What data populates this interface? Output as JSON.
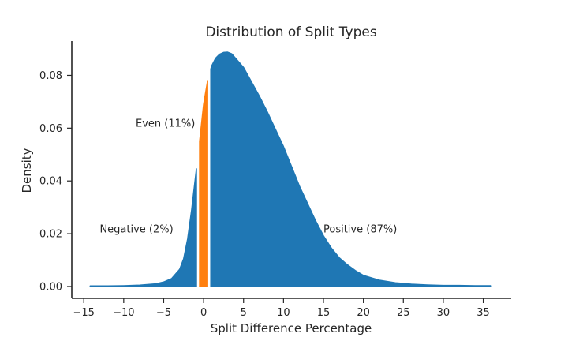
{
  "chart_data": {
    "type": "area",
    "title": "Distribution of Split Types",
    "xlabel": "Split Difference Percentage",
    "ylabel": "Density",
    "xlim": [
      -16.5,
      38.5
    ],
    "ylim": [
      -0.0045,
      0.093
    ],
    "xticks": [
      -15,
      -10,
      -5,
      0,
      5,
      10,
      15,
      20,
      25,
      30,
      35
    ],
    "xtick_labels": [
      "−15",
      "−10",
      "−5",
      "0",
      "5",
      "10",
      "15",
      "20",
      "25",
      "30",
      "35"
    ],
    "yticks": [
      0.0,
      0.02,
      0.04,
      0.06,
      0.08
    ],
    "ytick_labels": [
      "0.00",
      "0.02",
      "0.04",
      "0.06",
      "0.08"
    ],
    "grid": false,
    "colors": {
      "negative": "#1f77b4",
      "even": "#ff7f0e",
      "positive": "#1f77b4"
    },
    "density_curve": {
      "x": [
        -14.2,
        -12,
        -10,
        -8,
        -6,
        -5,
        -4,
        -3,
        -2.5,
        -2,
        -1.5,
        -1,
        -0.5,
        0,
        0.5,
        1,
        1.5,
        2,
        2.5,
        3,
        3.5,
        4,
        5,
        6,
        7,
        8,
        9,
        10,
        11,
        12,
        13,
        14,
        15,
        16,
        17,
        18,
        19,
        20,
        22,
        24,
        26,
        28,
        30,
        32,
        34,
        36
      ],
      "y": [
        0.0002,
        0.0002,
        0.0003,
        0.0005,
        0.001,
        0.0017,
        0.003,
        0.0065,
        0.0105,
        0.018,
        0.029,
        0.042,
        0.055,
        0.069,
        0.078,
        0.0835,
        0.0865,
        0.088,
        0.0887,
        0.0888,
        0.0882,
        0.0865,
        0.083,
        0.0775,
        0.072,
        0.066,
        0.0595,
        0.053,
        0.0455,
        0.038,
        0.0315,
        0.025,
        0.0192,
        0.0145,
        0.0108,
        0.0082,
        0.006,
        0.0042,
        0.0024,
        0.0014,
        0.0009,
        0.0006,
        0.0004,
        0.0004,
        0.0003,
        0.0003
      ]
    },
    "series": [
      {
        "name": "Negative",
        "x_range": [
          -14.2,
          -0.9
        ]
      },
      {
        "name": "Even",
        "x_range": [
          -0.5,
          0.5
        ]
      },
      {
        "name": "Positive",
        "x_range": [
          0.9,
          36
        ]
      }
    ],
    "annotations": [
      {
        "text": "Negative (2%)",
        "x": -13,
        "y": 0.0205
      },
      {
        "text": "Even (11%)",
        "x": -8.5,
        "y": 0.0605
      },
      {
        "text": "Positive (87%)",
        "x": 15,
        "y": 0.0205
      }
    ]
  }
}
